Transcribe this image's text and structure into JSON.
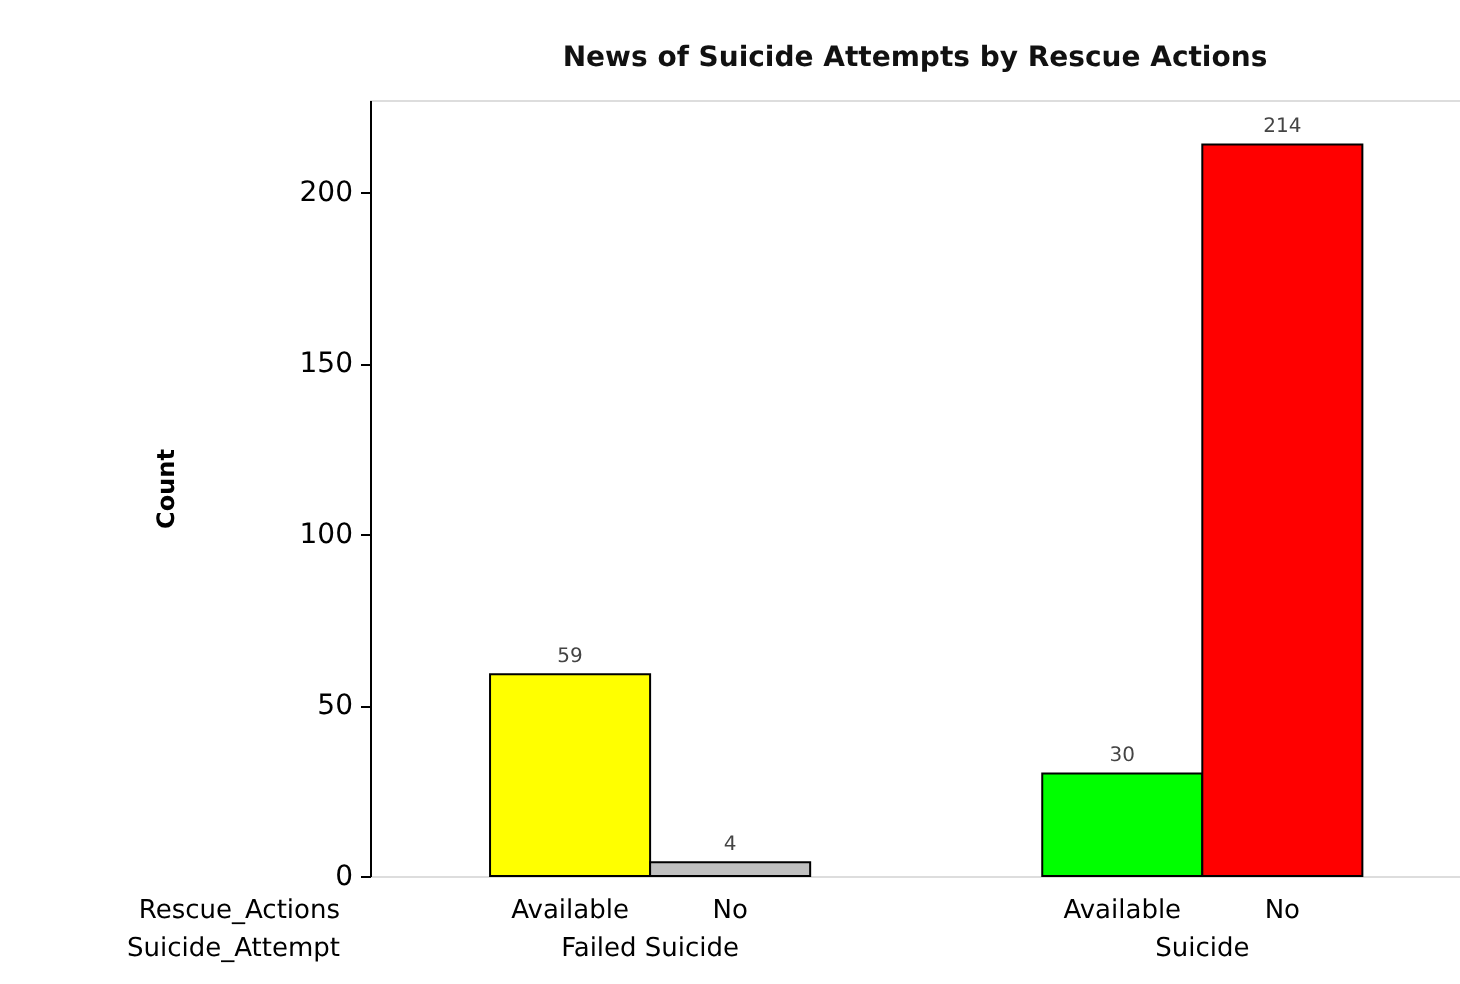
{
  "chart_data": {
    "type": "bar",
    "title": "News of Suicide Attempts by Rescue Actions",
    "ylabel": "Count",
    "categories": [
      "Available",
      "No",
      "Available",
      "No"
    ],
    "values": [
      59,
      4,
      30,
      214
    ],
    "colors": [
      "#ffff00",
      "#c0c0c0",
      "#00ff00",
      "#ff0000"
    ],
    "ylim": [
      0,
      227
    ],
    "yticks": [
      0,
      50,
      100,
      150,
      200
    ],
    "data_labels": true,
    "annotations": [
      "Rescue_Actions",
      "Suicide_Attempt",
      "Failed Suicide",
      "Suicide"
    ]
  }
}
